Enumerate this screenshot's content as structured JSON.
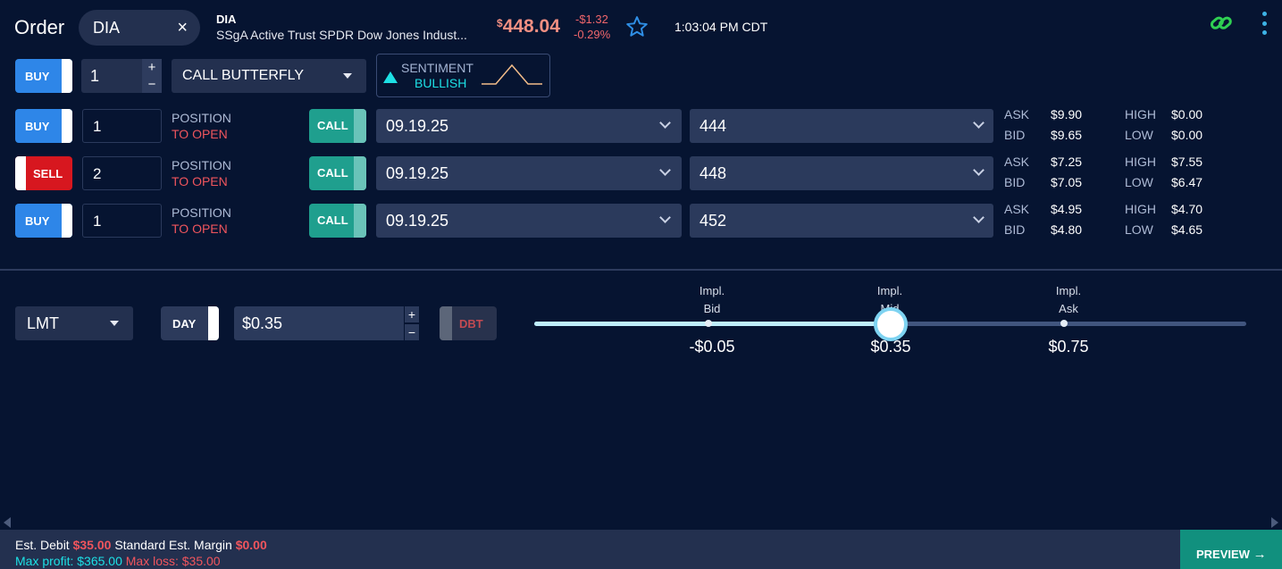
{
  "header": {
    "title": "Order",
    "symbol": "DIA",
    "close_glyph": "×",
    "symbol_name": "DIA",
    "symbol_desc": "SSgA Active Trust SPDR Dow Jones Indust...",
    "price_currency": "$",
    "price": "448.04",
    "change": "-$1.32",
    "change_pct": "-0.29%",
    "time": "1:03:04 PM CDT"
  },
  "strategy_row": {
    "side": "BUY",
    "qty": "1",
    "strategy": "CALL BUTTERFLY",
    "sentiment_label": "SENTIMENT",
    "sentiment_value": "BULLISH"
  },
  "legs": [
    {
      "side": "BUY",
      "qty": "1",
      "pos1": "POSITION",
      "pos2": "TO OPEN",
      "type": "CALL",
      "expiry": "09.19.25",
      "strike": "444",
      "ask_label": "ASK",
      "ask": "$9.90",
      "bid_label": "BID",
      "bid": "$9.65",
      "high_label": "HIGH",
      "high": "$0.00",
      "low_label": "LOW",
      "low": "$0.00"
    },
    {
      "side": "SELL",
      "qty": "2",
      "pos1": "POSITION",
      "pos2": "TO OPEN",
      "type": "CALL",
      "expiry": "09.19.25",
      "strike": "448",
      "ask_label": "ASK",
      "ask": "$7.25",
      "bid_label": "BID",
      "bid": "$7.05",
      "high_label": "HIGH",
      "high": "$7.55",
      "low_label": "LOW",
      "low": "$6.47"
    },
    {
      "side": "BUY",
      "qty": "1",
      "pos1": "POSITION",
      "pos2": "TO OPEN",
      "type": "CALL",
      "expiry": "09.19.25",
      "strike": "452",
      "ask_label": "ASK",
      "ask": "$4.95",
      "bid_label": "BID",
      "bid": "$4.80",
      "high_label": "HIGH",
      "high": "$4.70",
      "low_label": "LOW",
      "low": "$4.65"
    }
  ],
  "order": {
    "type": "LMT",
    "tif": "DAY",
    "limit_price": "$0.35",
    "debit_credit": "DBT",
    "plus": "+",
    "minus": "−"
  },
  "slider": {
    "bid_l1": "Impl.",
    "bid_l2": "Bid",
    "bid_val": "-$0.05",
    "mid_l1": "Impl.",
    "mid_l2": "Mid",
    "mid_val": "$0.35",
    "ask_l1": "Impl.",
    "ask_l2": "Ask",
    "ask_val": "$0.75",
    "position_fraction": 0.5
  },
  "footer": {
    "est_debit_label": "Est. Debit",
    "est_debit": "$35.00",
    "margin_label": "Standard Est. Margin",
    "margin": "$0.00",
    "max_profit_label": "Max profit:",
    "max_profit": "$365.00",
    "max_loss_label": "Max loss:",
    "max_loss": "$35.00",
    "preview_label": "PREVIEW",
    "preview_arrow": "→"
  },
  "colors": {
    "background": "#061431",
    "buy": "#2e86e8",
    "sell": "#d7171f",
    "call": "#1f9f8e",
    "negative": "#f0555d",
    "accent": "#1de0e5"
  },
  "icons": [
    "close-icon",
    "star-icon",
    "link-icon",
    "kebab-menu-icon",
    "caret-down-icon",
    "chevron-down-icon",
    "sentiment-triangle-icon",
    "payoff-chart-icon"
  ]
}
